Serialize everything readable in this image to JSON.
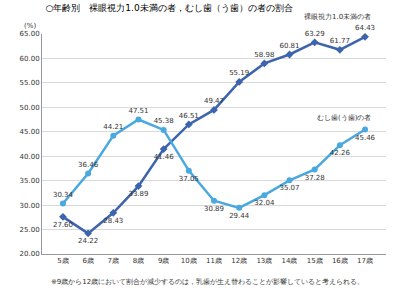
{
  "chart_data": {
    "type": "line",
    "title": "○年齢別　裸眼視力1.0未満の者，むし歯（う歯）の者の割合",
    "y_label": "(%)",
    "annotations": [
      "※9歳から12歳において割合が減少するのは，乳歯が生え替わることが影響していると考えられる。"
    ],
    "categories": [
      "5歳",
      "6歳",
      "7歳",
      "8歳",
      "9歳",
      "10歳",
      "11歳",
      "12歳",
      "13歳",
      "14歳",
      "15歳",
      "16歳",
      "17歳"
    ],
    "series": [
      {
        "name": "裸眼視力1.0未満の者",
        "color": "#3d64ad",
        "marker": "diamond",
        "values": [
          27.6,
          24.22,
          28.43,
          33.89,
          41.46,
          46.51,
          49.47,
          55.19,
          58.98,
          60.81,
          63.29,
          61.77,
          64.43
        ],
        "value_labels": [
          "27.60",
          "24.22",
          "28.43",
          "33.89",
          "41.46",
          "46.51",
          "49.47",
          "55.19",
          "58.98",
          "60.81",
          "63.29",
          "61.77",
          "64.43"
        ]
      },
      {
        "name": "むし歯(う歯)の者",
        "color": "#4aa8e0",
        "marker": "circle",
        "values": [
          30.34,
          36.46,
          44.21,
          47.51,
          45.38,
          37.05,
          30.89,
          29.44,
          32.04,
          35.07,
          37.28,
          42.26,
          45.46
        ],
        "value_labels": [
          "30.34",
          "36.46",
          "44.21",
          "47.51",
          "45.38",
          "37.05",
          "30.89",
          "29.44",
          "32.04",
          "35.07",
          "37.28",
          "42.26",
          "45.46"
        ]
      }
    ],
    "ylim": [
      20,
      65
    ],
    "yticks": [
      {
        "value": 20,
        "label": "20.00"
      },
      {
        "value": 25,
        "label": "25.00"
      },
      {
        "value": 30,
        "label": "30.00"
      },
      {
        "value": 35,
        "label": "35.00"
      },
      {
        "value": 40,
        "label": "40.00"
      },
      {
        "value": 45,
        "label": "45.00"
      },
      {
        "value": 50,
        "label": "50.00"
      },
      {
        "value": 55,
        "label": "55.00"
      },
      {
        "value": 60,
        "label": "60.00"
      },
      {
        "value": 65,
        "label": "65.00"
      }
    ],
    "grid": true,
    "data_labels": true
  }
}
